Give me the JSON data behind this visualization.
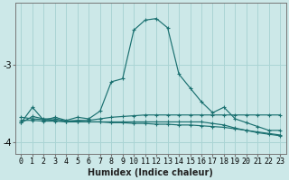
{
  "xlabel": "Humidex (Indice chaleur)",
  "bg_color": "#cce8e8",
  "grid_color": "#aad4d4",
  "line_color": "#1a7070",
  "x_data": [
    0,
    1,
    2,
    3,
    4,
    5,
    6,
    7,
    8,
    9,
    10,
    11,
    12,
    13,
    14,
    15,
    16,
    17,
    18,
    19,
    20,
    21,
    22,
    23
  ],
  "curve_main": [
    -3.75,
    -3.55,
    -3.72,
    -3.68,
    -3.72,
    -3.68,
    -3.7,
    -3.6,
    -3.22,
    -3.18,
    -2.55,
    -2.42,
    -2.4,
    -2.52,
    -3.12,
    -3.3,
    -3.48,
    -3.62,
    -3.55,
    -3.7,
    -3.75,
    -3.8,
    -3.85,
    -3.85
  ],
  "trend1": [
    -3.75,
    -3.67,
    -3.7,
    -3.7,
    -3.73,
    -3.72,
    -3.72,
    -3.7,
    -3.68,
    -3.67,
    -3.66,
    -3.65,
    -3.65,
    -3.65,
    -3.65,
    -3.65,
    -3.65,
    -3.65,
    -3.65,
    -3.65,
    -3.65,
    -3.65,
    -3.65,
    -3.65
  ],
  "trend2": [
    -3.72,
    -3.72,
    -3.73,
    -3.73,
    -3.74,
    -3.74,
    -3.74,
    -3.74,
    -3.74,
    -3.74,
    -3.74,
    -3.74,
    -3.74,
    -3.74,
    -3.74,
    -3.74,
    -3.74,
    -3.76,
    -3.78,
    -3.82,
    -3.85,
    -3.88,
    -3.9,
    -3.92
  ],
  "trend3": [
    -3.68,
    -3.7,
    -3.71,
    -3.72,
    -3.73,
    -3.73,
    -3.74,
    -3.74,
    -3.75,
    -3.75,
    -3.76,
    -3.76,
    -3.77,
    -3.77,
    -3.78,
    -3.78,
    -3.79,
    -3.8,
    -3.81,
    -3.83,
    -3.85,
    -3.87,
    -3.89,
    -3.91
  ],
  "ylim": [
    -4.15,
    -2.2
  ],
  "yticks": [
    -4,
    -3
  ],
  "xlim": [
    -0.5,
    23.5
  ],
  "tick_fontsize": 6,
  "xlabel_fontsize": 7
}
